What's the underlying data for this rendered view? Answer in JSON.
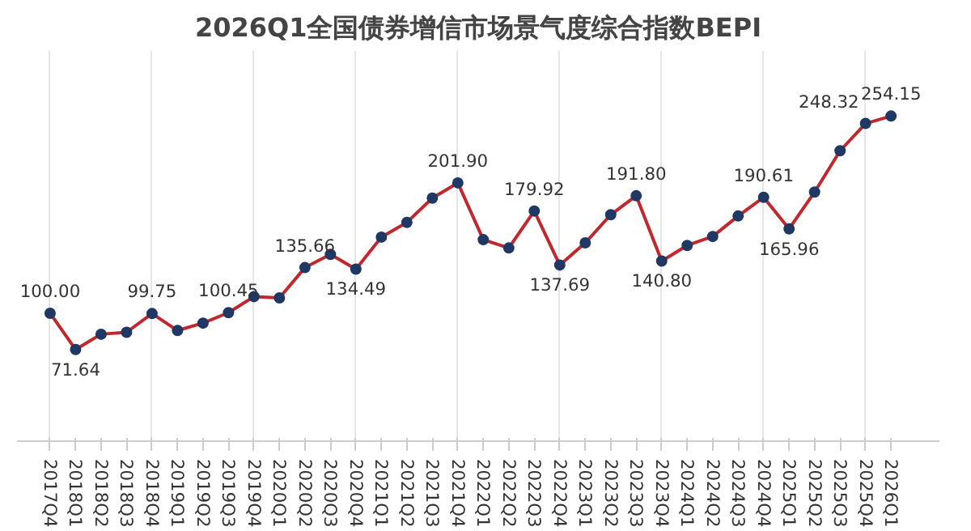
{
  "chart_data": {
    "type": "line",
    "title": "2026Q1全国债券增信市场景气度综合指数BEPI",
    "categories": [
      "2017Q4",
      "2018Q1",
      "2018Q2",
      "2018Q3",
      "2018Q4",
      "2019Q1",
      "2019Q2",
      "2019Q3",
      "2019Q4",
      "2020Q1",
      "2020Q2",
      "2020Q3",
      "2020Q4",
      "2021Q1",
      "2021Q2",
      "2021Q3",
      "2021Q4",
      "2022Q1",
      "2022Q2",
      "2022Q3",
      "2022Q4",
      "2023Q1",
      "2023Q2",
      "2023Q3",
      "2023Q4",
      "2024Q1",
      "2024Q2",
      "2024Q3",
      "2024Q4",
      "2025Q1",
      "2025Q2",
      "2025Q3",
      "2025Q4",
      "2026Q1"
    ],
    "series": [
      {
        "color": "#c0282d",
        "values": [
          100.0,
          71.64,
          83.6,
          85.1,
          99.75,
          86.5,
          92.3,
          100.45,
          113,
          112,
          135.66,
          146,
          134.49,
          159.5,
          171,
          190,
          201.9,
          157.5,
          151,
          179.92,
          137.69,
          155,
          177,
          191.8,
          140.8,
          153,
          160,
          176,
          190.61,
          165.96,
          194.7,
          227,
          248.32,
          254.15
        ],
        "value_labels": [
          "100.00",
          "71.64",
          null,
          null,
          "99.75",
          null,
          null,
          "100.45",
          null,
          null,
          "135.66",
          null,
          "134.49",
          null,
          null,
          null,
          "201.90",
          null,
          null,
          "179.92",
          "137.69",
          null,
          null,
          "191.80",
          "140.80",
          null,
          null,
          null,
          "190.61",
          "165.96",
          null,
          null,
          "248.32",
          "254.15"
        ]
      }
    ],
    "marker": "circle",
    "line_style": "solid",
    "grid": "x",
    "tick_labels": "x"
  }
}
